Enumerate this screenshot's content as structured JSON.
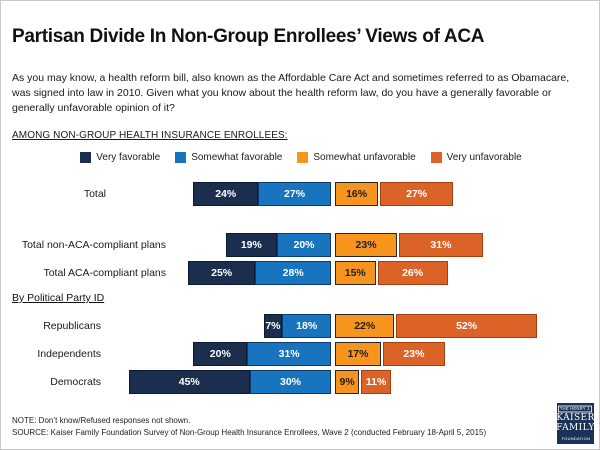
{
  "slide": {
    "title": "Partisan Divide In Non-Group Enrollees’ Views of ACA",
    "intro": "As you may know, a health reform bill, also known as the Affordable Care Act and sometimes referred to as Obamacare, was signed into law in 2010. Given what you know about the health reform law, do you have a generally favorable or generally unfavorable opinion of it?",
    "population_heading": "AMONG NON-GROUP HEALTH INSURANCE ENROLLEES:",
    "note": "NOTE: Don’t know/Refused responses not shown.",
    "source": "SOURCE: Kaiser Family Foundation Survey of Non-Group Health Insurance Enrollees, Wave 2 (conducted February 18-April 5, 2015)"
  },
  "logo": {
    "line1": "THE HENRY J.",
    "line2": "KAISER",
    "line3": "FAMILY",
    "line4": "FOUNDATION",
    "bg_color": "#1B3157"
  },
  "chart_data": {
    "type": "bar",
    "orientation": "horizontal",
    "stacked": true,
    "diverging": true,
    "unit": "%",
    "legend_position": "top",
    "legend": [
      {
        "label": "Very favorable",
        "color": "#1B2E4D",
        "text_color": "#FFFFFF",
        "border_color": "#0C1B33"
      },
      {
        "label": "Somewhat favorable",
        "color": "#1874BE",
        "text_color": "#FFFFFF",
        "border_color": "#0D3E6E"
      },
      {
        "label": "Somewhat unfavorable",
        "color": "#F7941E",
        "text_color": "#1F1F1F",
        "border_color": "#262626"
      },
      {
        "label": "Very unfavorable",
        "color": "#DC6327",
        "text_color": "#FFFFFF",
        "border_color": "#A2410F"
      }
    ],
    "section_heading": "By Political Party ID",
    "rows": [
      {
        "label": "Total",
        "group": "total",
        "values": [
          24,
          27,
          16,
          27
        ]
      },
      {
        "label": "Total non-ACA-compliant plans",
        "group": "plans",
        "values": [
          19,
          20,
          23,
          31
        ]
      },
      {
        "label": "Total ACA-compliant plans",
        "group": "plans",
        "values": [
          25,
          28,
          15,
          26
        ]
      },
      {
        "label": "Republicans",
        "group": "party",
        "values": [
          7,
          18,
          22,
          52
        ]
      },
      {
        "label": "Independents",
        "group": "party",
        "values": [
          20,
          31,
          17,
          23
        ]
      },
      {
        "label": "Democrats",
        "group": "party",
        "values": [
          45,
          30,
          9,
          11
        ]
      }
    ]
  }
}
